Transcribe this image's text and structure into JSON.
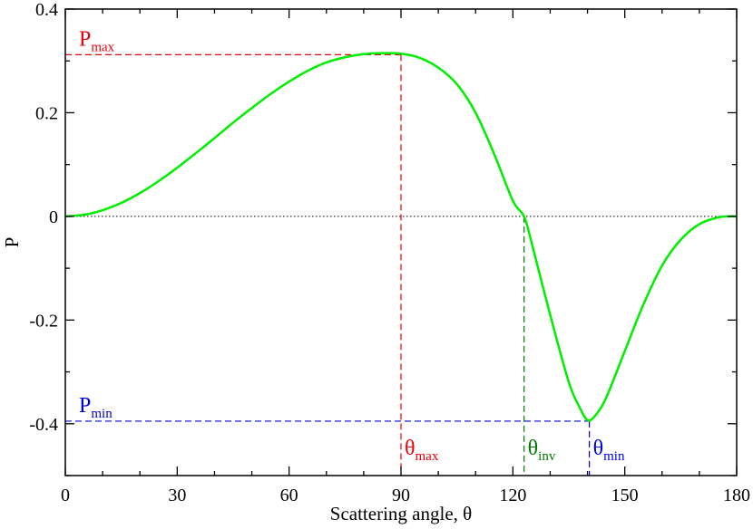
{
  "chart_data": {
    "type": "line",
    "title": "",
    "xlabel": "Scattering angle, θ",
    "ylabel": "P",
    "xlim": [
      0,
      180
    ],
    "ylim": [
      -0.5,
      0.4
    ],
    "grid": false,
    "legend": "none",
    "x_ticks": [
      {
        "value": 0,
        "label": "0"
      },
      {
        "value": 30,
        "label": "30"
      },
      {
        "value": 60,
        "label": "60"
      },
      {
        "value": 90,
        "label": "90"
      },
      {
        "value": 120,
        "label": "120"
      },
      {
        "value": 150,
        "label": "150"
      },
      {
        "value": 180,
        "label": "180"
      }
    ],
    "x_minor_step": 10,
    "y_ticks": [
      {
        "value": -0.4,
        "label": "-0.4"
      },
      {
        "value": -0.2,
        "label": "-0.2"
      },
      {
        "value": 0,
        "label": "0"
      },
      {
        "value": 0.2,
        "label": "0.2"
      },
      {
        "value": 0.4,
        "label": "0.4"
      }
    ],
    "y_minor_step": 0.1,
    "series": [
      {
        "color": "#00ee00",
        "x": [
          0,
          5,
          10,
          15,
          20,
          25,
          30,
          35,
          40,
          45,
          50,
          55,
          60,
          65,
          70,
          75,
          80,
          85,
          90,
          95,
          100,
          105,
          110,
          115,
          120,
          123,
          125,
          130,
          135,
          138,
          140,
          142,
          145,
          150,
          155,
          160,
          165,
          170,
          175,
          178,
          180
        ],
        "y": [
          0,
          0.003,
          0.012,
          0.026,
          0.045,
          0.068,
          0.094,
          0.122,
          0.151,
          0.181,
          0.209,
          0.236,
          0.26,
          0.281,
          0.297,
          0.307,
          0.313,
          0.315,
          0.314,
          0.306,
          0.287,
          0.255,
          0.2,
          0.12,
          0.03,
          0,
          -0.05,
          -0.19,
          -0.32,
          -0.37,
          -0.393,
          -0.385,
          -0.35,
          -0.26,
          -0.17,
          -0.095,
          -0.045,
          -0.015,
          -0.002,
          0,
          0
        ]
      }
    ],
    "reference_line": {
      "y": 0,
      "color": "#000000",
      "style": "dotted"
    },
    "annotations": [
      {
        "id": "p-max",
        "label": "P",
        "sub": "max",
        "value": 0.312,
        "theta": 90,
        "color": "#e8000b",
        "axis": "y"
      },
      {
        "id": "p-min",
        "label": "P",
        "sub": "min",
        "value": -0.395,
        "theta": 140.5,
        "color": "#0000dd",
        "axis": "y"
      },
      {
        "id": "theta-max",
        "label": "θ",
        "sub": "max",
        "value": 90,
        "color": "#e8000b",
        "axis": "x",
        "to_y": 0.312
      },
      {
        "id": "theta-inv",
        "label": "θ",
        "sub": "inv",
        "value": 123,
        "color": "#007a00",
        "axis": "x",
        "to_y": 0
      },
      {
        "id": "theta-min",
        "label": "θ",
        "sub": "min",
        "value": 140.5,
        "color": "#0000dd",
        "axis": "x",
        "to_y": -0.395
      }
    ]
  }
}
